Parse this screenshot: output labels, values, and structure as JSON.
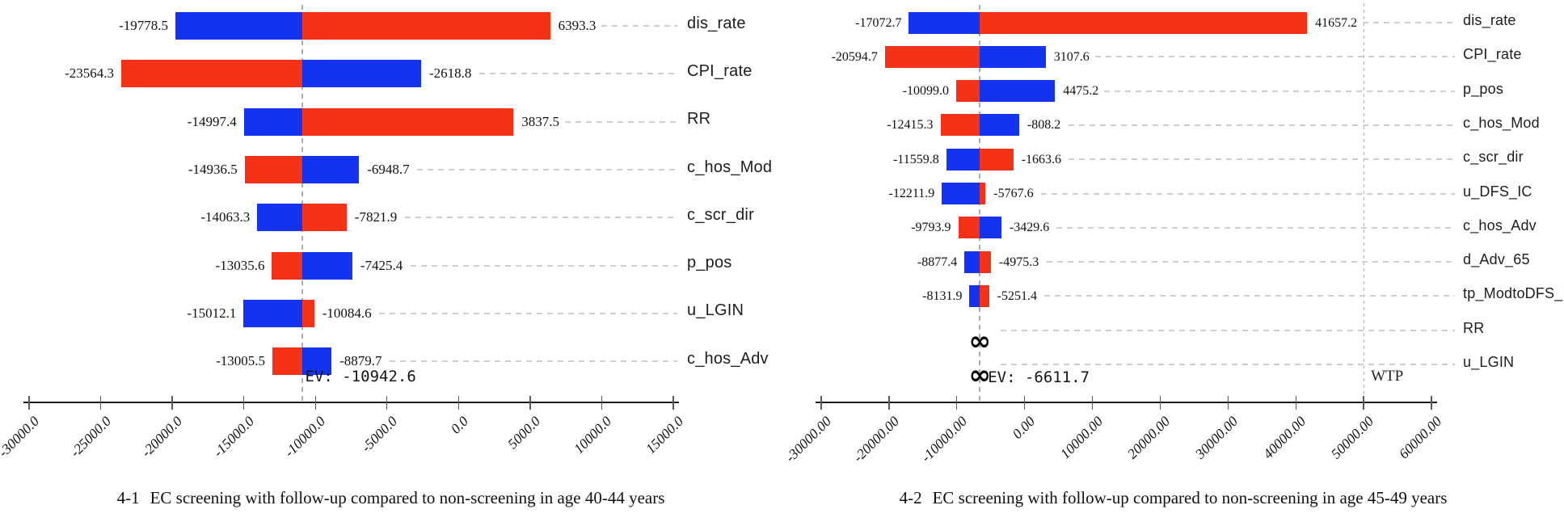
{
  "colors": {
    "bar_red": "#f43217",
    "bar_blue": "#1333f0",
    "leader": "#cfcfcf",
    "ev_line": "#aeaeae",
    "wtp_line": "#b4b4b4",
    "axis": "#1a1a1a"
  },
  "chart_data": [
    {
      "type": "bar",
      "variant": "tornado",
      "caption_number": "4-1",
      "caption_text": "EC screening with follow-up compared to non-screening in age 40-44 years",
      "ev_value": -10942.6,
      "ev_label": "EV: -10942.6",
      "xlim": [
        -30000,
        15000
      ],
      "xtick_values": [
        -30000,
        -25000,
        -20000,
        -15000,
        -10000,
        -5000,
        0,
        5000,
        10000,
        15000
      ],
      "xtick_labels": [
        "-30000.0",
        "-25000.0",
        "-20000.0",
        "-15000.0",
        "-10000.0",
        "-5000.0",
        "0.0",
        "5000.0",
        "10000.0",
        "15000.0"
      ],
      "rows": [
        {
          "category": "dis_rate",
          "low": -19778.5,
          "high": 6393.3,
          "low_label": "-19778.5",
          "high_label": "6393.3",
          "low_color": "blue",
          "high_color": "red"
        },
        {
          "category": "CPI_rate",
          "low": -23564.3,
          "high": -2618.8,
          "low_label": "-23564.3",
          "high_label": "-2618.8",
          "low_color": "red",
          "high_color": "blue"
        },
        {
          "category": "RR",
          "low": -14997.4,
          "high": 3837.5,
          "low_label": "-14997.4",
          "high_label": "3837.5",
          "low_color": "blue",
          "high_color": "red"
        },
        {
          "category": "c_hos_Mod",
          "low": -14936.5,
          "high": -6948.7,
          "low_label": "-14936.5",
          "high_label": "-6948.7",
          "low_color": "red",
          "high_color": "blue"
        },
        {
          "category": "c_scr_dir",
          "low": -14063.3,
          "high": -7821.9,
          "low_label": "-14063.3",
          "high_label": "-7821.9",
          "low_color": "blue",
          "high_color": "red"
        },
        {
          "category": "p_pos",
          "low": -13035.6,
          "high": -7425.4,
          "low_label": "-13035.6",
          "high_label": "-7425.4",
          "low_color": "red",
          "high_color": "blue"
        },
        {
          "category": "u_LGIN",
          "low": -15012.1,
          "high": -10084.6,
          "low_label": "-15012.1",
          "high_label": "-10084.6",
          "low_color": "blue",
          "high_color": "red"
        },
        {
          "category": "c_hos_Adv",
          "low": -13005.5,
          "high": -8879.7,
          "low_label": "-13005.5",
          "high_label": "-8879.7",
          "low_color": "red",
          "high_color": "blue"
        }
      ]
    },
    {
      "type": "bar",
      "variant": "tornado",
      "caption_number": "4-2",
      "caption_text": "EC screening with follow-up compared to non-screening in age 45-49 years",
      "ev_value": -6611.7,
      "ev_label": "EV: -6611.7",
      "xlim": [
        -30000,
        60000
      ],
      "xtick_values": [
        -30000,
        -20000,
        -10000,
        0,
        10000,
        20000,
        30000,
        40000,
        50000,
        60000
      ],
      "xtick_labels": [
        "-30000.00",
        "-20000.00",
        "-10000.00",
        "0.00",
        "10000.00",
        "20000.00",
        "30000.00",
        "40000.00",
        "50000.00",
        "60000.00"
      ],
      "wtp": {
        "value": 50000,
        "label": "WTP"
      },
      "rows": [
        {
          "category": "dis_rate",
          "low": -17072.7,
          "high": 41657.2,
          "low_label": "-17072.7",
          "high_label": "41657.2",
          "low_color": "blue",
          "high_color": "red"
        },
        {
          "category": "CPI_rate",
          "low": -20594.7,
          "high": 3107.6,
          "low_label": "-20594.7",
          "high_label": "3107.6",
          "low_color": "red",
          "high_color": "blue"
        },
        {
          "category": "p_pos",
          "low": -10099.0,
          "high": 4475.2,
          "low_label": "-10099.0",
          "high_label": "4475.2",
          "low_color": "red",
          "high_color": "blue"
        },
        {
          "category": "c_hos_Mod",
          "low": -12415.3,
          "high": -808.2,
          "low_label": "-12415.3",
          "high_label": "-808.2",
          "low_color": "red",
          "high_color": "blue"
        },
        {
          "category": "c_scr_dir",
          "low": -11559.8,
          "high": -1663.6,
          "low_label": "-11559.8",
          "high_label": "-1663.6",
          "low_color": "blue",
          "high_color": "red"
        },
        {
          "category": "u_DFS_IC",
          "low": -12211.9,
          "high": -5767.6,
          "low_label": "-12211.9",
          "high_label": "-5767.6",
          "low_color": "blue",
          "high_color": "red"
        },
        {
          "category": "c_hos_Adv",
          "low": -9793.9,
          "high": -3429.6,
          "low_label": "-9793.9",
          "high_label": "-3429.6",
          "low_color": "red",
          "high_color": "blue"
        },
        {
          "category": "d_Adv_65",
          "low": -8877.4,
          "high": -4975.3,
          "low_label": "-8877.4",
          "high_label": "-4975.3",
          "low_color": "blue",
          "high_color": "red"
        },
        {
          "category": "tp_ModtoDFS_Mod",
          "low": -8131.9,
          "high": -5251.4,
          "low_label": "-8131.9",
          "high_label": "-5251.4",
          "low_color": "blue",
          "high_color": "red"
        },
        {
          "category": "RR",
          "infinity": true,
          "symbol": "∞"
        },
        {
          "category": "u_LGIN",
          "infinity": true,
          "symbol": "∞"
        }
      ]
    }
  ]
}
